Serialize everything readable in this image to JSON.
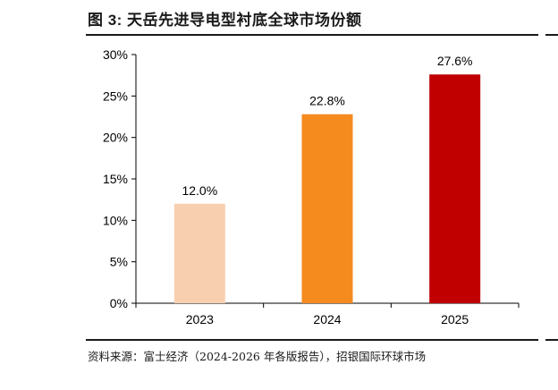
{
  "figure": {
    "title": "图 3: 天岳先进导电型衬底全球市场份额",
    "source": "资料来源：富士经济（2024-2026 年各版报告），招银国际环球市场"
  },
  "chart_data": {
    "type": "bar",
    "categories": [
      "2023",
      "2024",
      "2025"
    ],
    "values": [
      12.0,
      22.8,
      27.6
    ],
    "data_labels": [
      "12.0%",
      "22.8%",
      "27.6%"
    ],
    "colors": [
      "#f8d0b0",
      "#f58a1f",
      "#c00000"
    ],
    "ylim": [
      0,
      30
    ],
    "yticks": [
      0,
      5,
      10,
      15,
      20,
      25,
      30
    ],
    "ytick_labels": [
      "0%",
      "5%",
      "10%",
      "15%",
      "20%",
      "25%",
      "30%"
    ],
    "grid": false,
    "legend": "none"
  }
}
